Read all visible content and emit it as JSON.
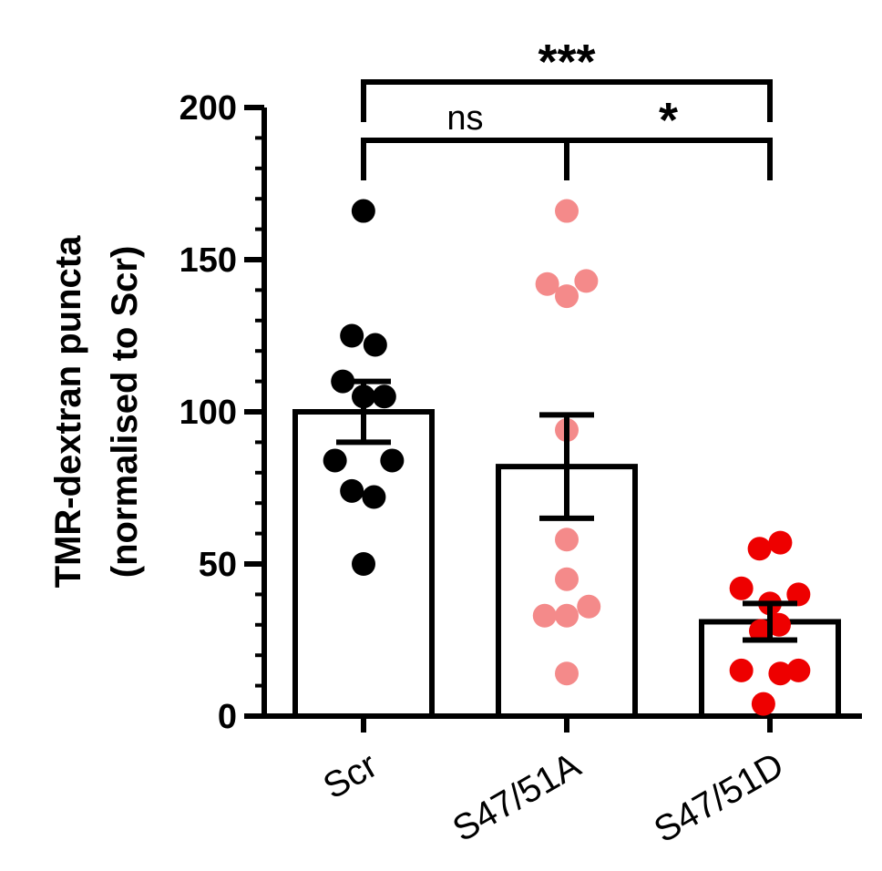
{
  "chart_data": {
    "type": "bar",
    "ylabel_line1": "TMR-dextran puncta",
    "ylabel_line2": "(normalised to Scr)",
    "xlabel": "",
    "ylim": [
      0,
      200
    ],
    "yticks": [
      0,
      50,
      100,
      150,
      200
    ],
    "yminor_step": 10,
    "categories": [
      "Scr",
      "S47/51A",
      "S47/51D"
    ],
    "groups": [
      {
        "name": "Scr",
        "mean": 100,
        "sem": 10,
        "color": "#000000",
        "points": [
          {
            "v": 166,
            "j": -0.001
          },
          {
            "v": 125,
            "j": -0.09
          },
          {
            "v": 122,
            "j": 0.09
          },
          {
            "v": 110,
            "j": -0.16
          },
          {
            "v": 105,
            "j": 0.0
          },
          {
            "v": 105,
            "j": 0.16
          },
          {
            "v": 84,
            "j": -0.22
          },
          {
            "v": 84,
            "j": 0.22
          },
          {
            "v": 74,
            "j": -0.09
          },
          {
            "v": 72,
            "j": 0.08
          },
          {
            "v": 50,
            "j": 0.0
          }
        ]
      },
      {
        "name": "S47/51A",
        "mean": 82,
        "sem": 17,
        "color": "#f48a8a",
        "points": [
          {
            "v": 166,
            "j": 0.0
          },
          {
            "v": 142,
            "j": -0.15
          },
          {
            "v": 138,
            "j": 0.0
          },
          {
            "v": 143,
            "j": 0.15
          },
          {
            "v": 94,
            "j": 0.0
          },
          {
            "v": 58,
            "j": 0.0
          },
          {
            "v": 45,
            "j": 0.0
          },
          {
            "v": 36,
            "j": 0.17
          },
          {
            "v": 33,
            "j": -0.17
          },
          {
            "v": 33,
            "j": 0.0
          },
          {
            "v": 14,
            "j": 0.0
          }
        ]
      },
      {
        "name": "S47/51D",
        "mean": 31,
        "sem": 6,
        "color": "#ee0000",
        "points": [
          {
            "v": 57,
            "j": 0.08
          },
          {
            "v": 55,
            "j": -0.08
          },
          {
            "v": 42,
            "j": -0.22
          },
          {
            "v": 40,
            "j": 0.22
          },
          {
            "v": 37,
            "j": 0.0
          },
          {
            "v": 30,
            "j": 0.07
          },
          {
            "v": 28,
            "j": -0.07
          },
          {
            "v": 15,
            "j": -0.22
          },
          {
            "v": 15,
            "j": 0.22
          },
          {
            "v": 14,
            "j": 0.08
          },
          {
            "v": 4,
            "j": -0.05
          }
        ]
      }
    ],
    "annotations": [
      {
        "from": 0,
        "to": 2,
        "label": "***",
        "level": 2
      },
      {
        "from": 0,
        "to": 1,
        "label": "ns",
        "level": 1
      },
      {
        "from": 1,
        "to": 2,
        "label": "*",
        "level": 1
      }
    ]
  }
}
